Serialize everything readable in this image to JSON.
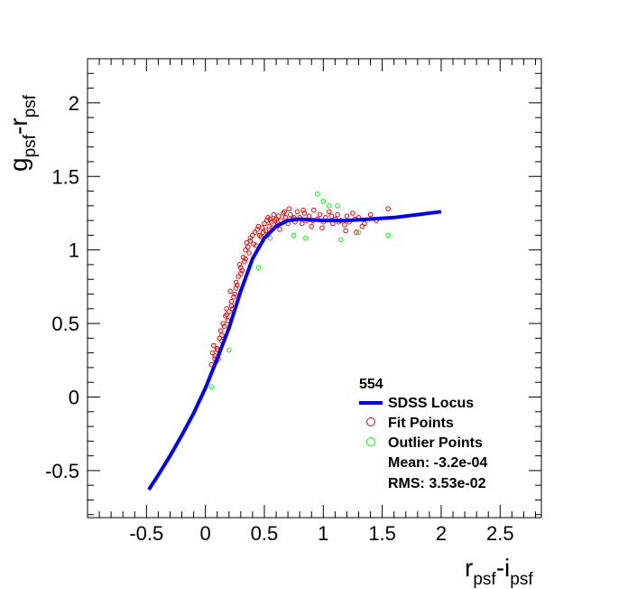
{
  "chart_data": {
    "type": "scatter",
    "x_axis": {
      "label_main_1": "r",
      "label_sub_1": "psf",
      "label_dash": "-",
      "label_main_2": "i",
      "label_sub_2": "psf",
      "range": [
        -1.0,
        2.85
      ],
      "tick_values": [
        -0.5,
        0,
        0.5,
        1,
        1.5,
        2,
        2.5
      ],
      "tick_labels": [
        "-0.5",
        "0",
        "0.5",
        "1",
        "1.5",
        "2",
        "2.5"
      ]
    },
    "y_axis": {
      "label_main_1": "g",
      "label_sub_1": "psf",
      "label_dash": "-",
      "label_main_2": "r",
      "label_sub_2": "psf",
      "range": [
        -0.82,
        2.3
      ],
      "tick_values": [
        -0.5,
        0,
        0.5,
        1,
        1.5,
        2
      ],
      "tick_labels": [
        "-0.5",
        "0",
        "0.5",
        "1",
        "1.5",
        "2"
      ]
    },
    "grid": false,
    "legend": {
      "placement": "bottom-right",
      "title": "554",
      "entries": [
        {
          "label": "SDSS Locus",
          "marker": "line",
          "color": "#0000ff"
        },
        {
          "label": "Fit Points",
          "marker": "open-circle",
          "color": "#ff0000"
        },
        {
          "label": "Outlier Points",
          "marker": "open-circle",
          "color": "#00ff00"
        }
      ],
      "stats": [
        "Mean: -3.2e-04",
        "RMS: 3.53e-02"
      ]
    },
    "series": [
      {
        "name": "SDSS Locus",
        "kind": "line",
        "color": "#0000ff",
        "x": [
          -0.48,
          -0.4,
          -0.3,
          -0.2,
          -0.1,
          0.0,
          0.1,
          0.2,
          0.3,
          0.4,
          0.5,
          0.6,
          0.7,
          0.8,
          1.0,
          1.2,
          1.4,
          1.6,
          1.8,
          2.0
        ],
        "y": [
          -0.63,
          -0.53,
          -0.4,
          -0.26,
          -0.11,
          0.06,
          0.26,
          0.47,
          0.72,
          0.94,
          1.08,
          1.16,
          1.2,
          1.21,
          1.2,
          1.2,
          1.21,
          1.22,
          1.24,
          1.26
        ]
      },
      {
        "name": "Fit Points",
        "kind": "scatter",
        "color": "#ff0000",
        "x": [
          0.05,
          0.06,
          0.08,
          0.07,
          0.1,
          0.12,
          0.11,
          0.09,
          0.13,
          0.15,
          0.14,
          0.17,
          0.16,
          0.18,
          0.2,
          0.19,
          0.22,
          0.21,
          0.24,
          0.23,
          0.26,
          0.25,
          0.28,
          0.27,
          0.3,
          0.29,
          0.32,
          0.31,
          0.34,
          0.33,
          0.36,
          0.35,
          0.38,
          0.37,
          0.4,
          0.42,
          0.41,
          0.44,
          0.46,
          0.45,
          0.48,
          0.5,
          0.49,
          0.52,
          0.54,
          0.53,
          0.56,
          0.58,
          0.57,
          0.6,
          0.62,
          0.61,
          0.64,
          0.66,
          0.68,
          0.7,
          0.72,
          0.71,
          0.74,
          0.76,
          0.78,
          0.8,
          0.82,
          0.84,
          0.86,
          0.88,
          0.9,
          0.92,
          0.95,
          0.97,
          1.0,
          1.02,
          1.05,
          1.08,
          1.1,
          1.12,
          1.15,
          1.18,
          1.2,
          1.22,
          1.25,
          1.28,
          1.3,
          1.35,
          1.4,
          1.45,
          1.55,
          0.08,
          0.1,
          0.14,
          0.18,
          0.22,
          0.26,
          0.3,
          0.34,
          0.38,
          0.43,
          0.47,
          0.51,
          0.55,
          0.59,
          0.63,
          0.67,
          0.75,
          0.83,
          0.91,
          0.99,
          1.07,
          1.13,
          1.19,
          1.27,
          1.33
        ],
        "y": [
          0.22,
          0.3,
          0.28,
          0.35,
          0.33,
          0.4,
          0.26,
          0.24,
          0.45,
          0.5,
          0.38,
          0.55,
          0.48,
          0.6,
          0.58,
          0.52,
          0.65,
          0.72,
          0.68,
          0.6,
          0.78,
          0.7,
          0.82,
          0.76,
          0.88,
          0.9,
          0.95,
          0.86,
          1.0,
          0.92,
          1.02,
          1.05,
          1.08,
          0.98,
          1.1,
          1.12,
          1.04,
          1.14,
          1.1,
          1.16,
          1.15,
          1.18,
          1.12,
          1.2,
          1.16,
          1.22,
          1.19,
          1.24,
          1.15,
          1.21,
          1.23,
          1.17,
          1.2,
          1.25,
          1.22,
          1.18,
          1.24,
          1.28,
          1.21,
          1.19,
          1.26,
          1.22,
          1.18,
          1.25,
          1.2,
          1.23,
          1.16,
          1.27,
          1.21,
          1.24,
          1.19,
          1.22,
          1.26,
          1.18,
          1.21,
          1.24,
          1.2,
          1.17,
          1.23,
          1.19,
          1.25,
          1.12,
          1.22,
          1.18,
          1.24,
          1.2,
          1.28,
          0.26,
          0.32,
          0.42,
          0.56,
          0.62,
          0.74,
          0.84,
          0.94,
          1.06,
          1.03,
          1.09,
          1.13,
          1.21,
          1.2,
          1.14,
          1.26,
          1.22,
          1.27,
          1.2,
          1.15,
          1.23,
          1.19,
          1.13,
          1.21,
          1.16
        ]
      },
      {
        "name": "Outlier Points",
        "kind": "scatter",
        "color": "#00ff00",
        "x": [
          0.05,
          0.2,
          0.45,
          0.55,
          0.75,
          0.85,
          0.95,
          1.0,
          1.05,
          1.12,
          1.15,
          1.3,
          1.55
        ],
        "y": [
          0.07,
          0.32,
          0.88,
          1.08,
          1.1,
          1.08,
          1.38,
          1.33,
          1.3,
          1.3,
          1.07,
          1.12,
          1.1
        ]
      }
    ]
  }
}
